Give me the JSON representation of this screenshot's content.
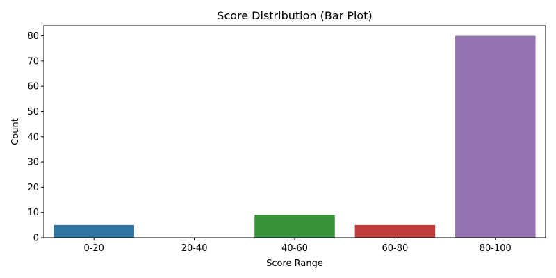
{
  "chart_data": {
    "type": "bar",
    "title": "Score Distribution (Bar Plot)",
    "xlabel": "Score Range",
    "ylabel": "Count",
    "categories": [
      "0-20",
      "20-40",
      "40-60",
      "60-80",
      "80-100"
    ],
    "values": [
      5,
      0,
      9,
      5,
      80
    ],
    "colors": [
      "#3274a1",
      "#e1812c",
      "#3a923a",
      "#c03d3e",
      "#9372b2"
    ],
    "ylim": [
      0,
      84
    ],
    "yticks": [
      0,
      10,
      20,
      30,
      40,
      50,
      60,
      70,
      80
    ],
    "grid": false,
    "legend": "none"
  }
}
